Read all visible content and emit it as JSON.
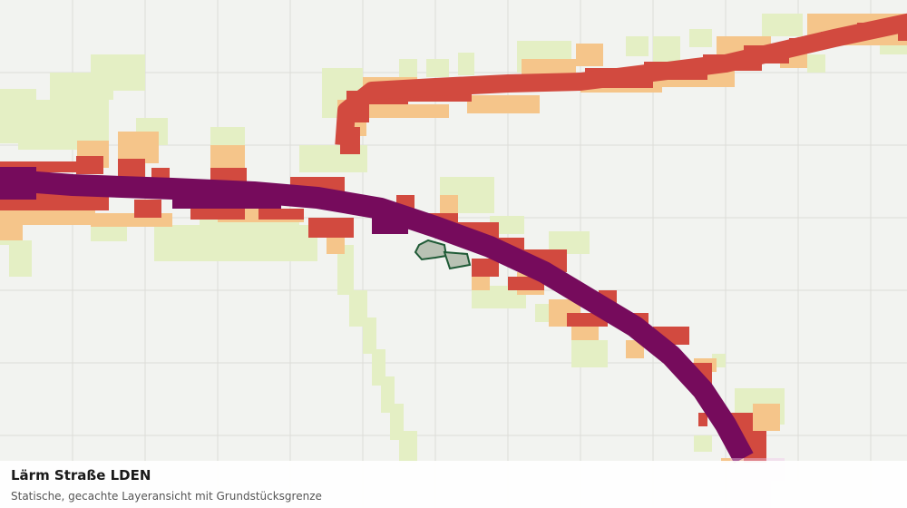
{
  "map": {
    "layer": "Lärm Straße LDEN",
    "noise_class_colors": [
      "#e4efc4",
      "#f5c58a",
      "#d24a3f",
      "#760b5c"
    ],
    "parcel_outline_color": "#1f5a36",
    "parcel_fill_color": "#b9c2b4",
    "grid_color": "#dcddd8",
    "background_color": "#f2f3f0"
  },
  "caption": {
    "title": "Lärm Straße LDEN",
    "subtitle": "Statische, gecachte Layeransicht mit Grundstücksgrenze"
  }
}
